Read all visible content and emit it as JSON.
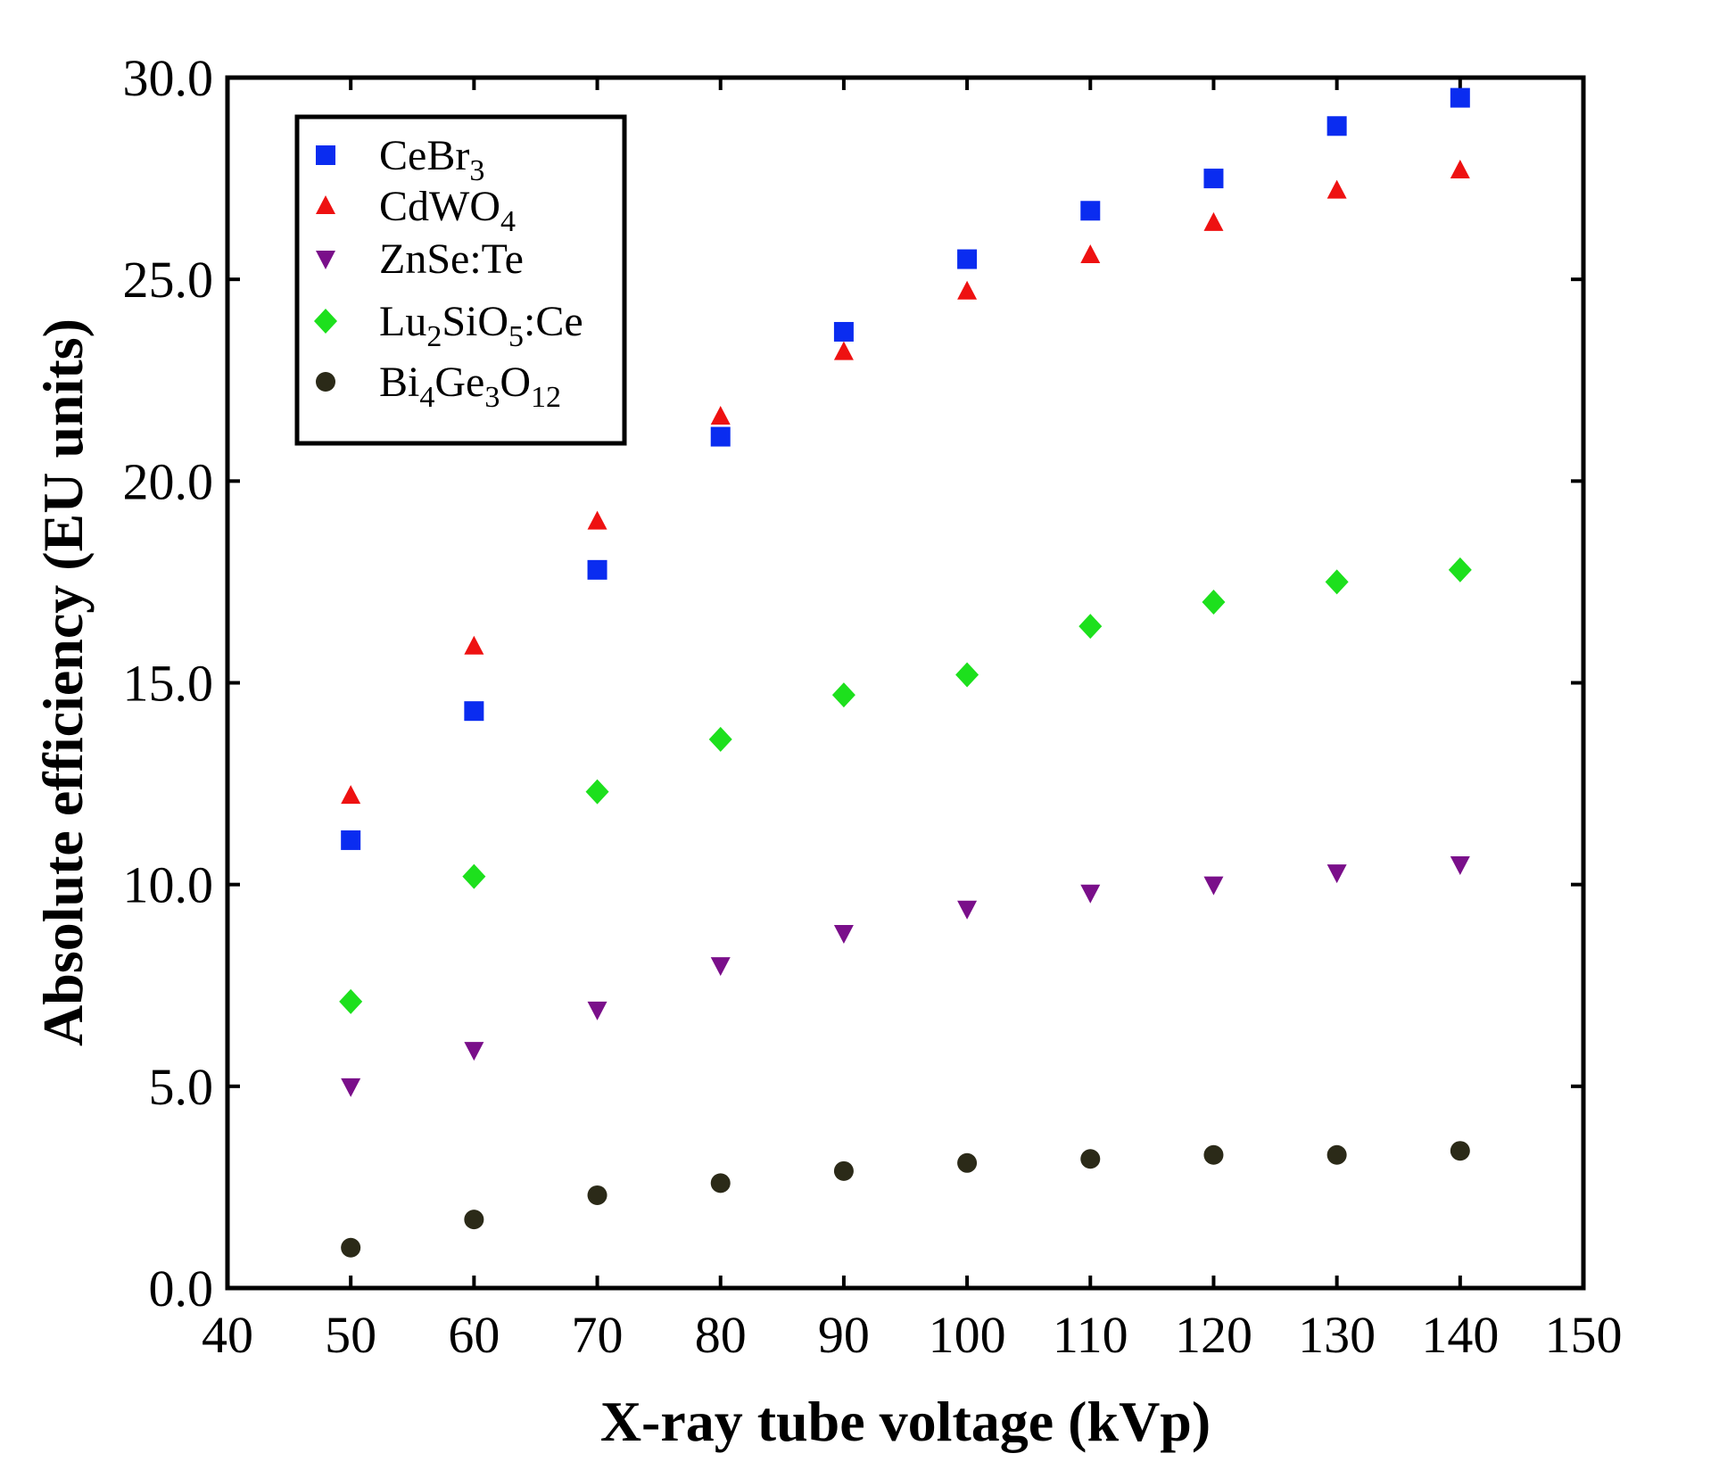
{
  "chart_data": {
    "type": "scatter",
    "title": "",
    "xlabel": "X-ray tube voltage (kVp)",
    "ylabel": "Absolute efficiency (EU units)",
    "xlim": [
      40,
      150
    ],
    "ylim": [
      0,
      30
    ],
    "xticks": [
      "40",
      "50",
      "60",
      "70",
      "80",
      "90",
      "100",
      "110",
      "120",
      "130",
      "140",
      "150"
    ],
    "yticks": [
      "0.0",
      "5.0",
      "10.0",
      "15.0",
      "20.0",
      "25.0",
      "30.0"
    ],
    "legend_position": "top-left",
    "x": [
      50,
      60,
      70,
      80,
      90,
      100,
      110,
      120,
      130,
      140
    ],
    "series": [
      {
        "name": "CeBr3",
        "label_parts": [
          {
            "t": "CeBr",
            "sub": false
          },
          {
            "t": "3",
            "sub": true
          }
        ],
        "marker": "square",
        "color": "#0a2cf0",
        "values": [
          11.1,
          14.3,
          17.8,
          21.1,
          23.7,
          25.5,
          26.7,
          27.5,
          28.8,
          29.5
        ]
      },
      {
        "name": "CdWO4",
        "label_parts": [
          {
            "t": "CdWO",
            "sub": false
          },
          {
            "t": "4",
            "sub": true
          }
        ],
        "marker": "triangle-up",
        "color": "#ee1111",
        "values": [
          12.2,
          15.9,
          19.0,
          21.6,
          23.2,
          24.7,
          25.6,
          26.4,
          27.2,
          27.7
        ]
      },
      {
        "name": "ZnSe:Te",
        "label_parts": [
          {
            "t": "ZnSe:Te",
            "sub": false
          }
        ],
        "marker": "triangle-down",
        "color": "#7a0f8a",
        "values": [
          5.0,
          5.9,
          6.9,
          8.0,
          8.8,
          9.4,
          9.8,
          10.0,
          10.3,
          10.5
        ]
      },
      {
        "name": "Lu2SiO5:Ce",
        "label_parts": [
          {
            "t": "Lu",
            "sub": false
          },
          {
            "t": "2",
            "sub": true
          },
          {
            "t": "SiO",
            "sub": false
          },
          {
            "t": "5",
            "sub": true
          },
          {
            "t": ":Ce",
            "sub": false
          }
        ],
        "marker": "diamond",
        "color": "#1de01d",
        "values": [
          7.1,
          10.2,
          12.3,
          13.6,
          14.7,
          15.2,
          16.4,
          17.0,
          17.5,
          17.8
        ]
      },
      {
        "name": "Bi4Ge3O12",
        "label_parts": [
          {
            "t": "Bi",
            "sub": false
          },
          {
            "t": "4",
            "sub": true
          },
          {
            "t": "Ge",
            "sub": false
          },
          {
            "t": "3",
            "sub": true
          },
          {
            "t": "O",
            "sub": false
          },
          {
            "t": "12",
            "sub": true
          }
        ],
        "marker": "circle",
        "color": "#2b2a18",
        "values": [
          1.0,
          1.7,
          2.3,
          2.6,
          2.9,
          3.1,
          3.2,
          3.3,
          3.3,
          3.4
        ]
      }
    ]
  }
}
